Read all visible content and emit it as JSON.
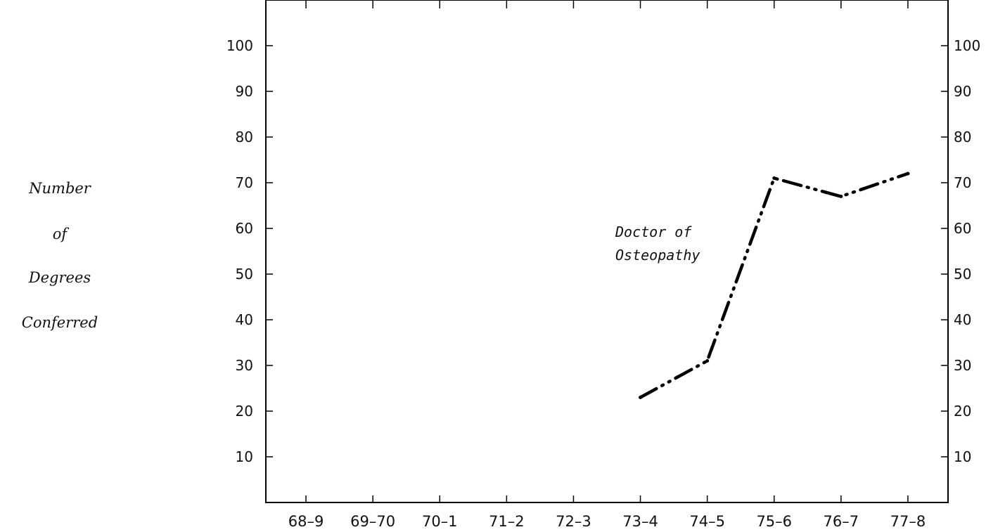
{
  "chart_data": {
    "type": "line",
    "title": "",
    "ylabel_lines": [
      "Number",
      "of",
      "Degrees",
      "Conferred"
    ],
    "xlabel": "",
    "categories": [
      "68-9",
      "69-70",
      "70-1",
      "71-2",
      "72-3",
      "73-4",
      "74-5",
      "75-6",
      "76-7",
      "77-8"
    ],
    "x_tick_labels": [
      "68–9",
      "69–70",
      "70–1",
      "71–2",
      "72–3",
      "73–4",
      "74–5",
      "75–6",
      "76–7",
      "77–8"
    ],
    "y_ticks": [
      10,
      20,
      30,
      40,
      50,
      60,
      70,
      80,
      90,
      100
    ],
    "ylim": [
      0,
      110
    ],
    "grid": false,
    "right_axis_mirrored": true,
    "series": [
      {
        "values": [
          null,
          null,
          null,
          null,
          null,
          23,
          31,
          71,
          67,
          72
        ],
        "line_style": "dash-dot",
        "color": "#000000"
      }
    ],
    "annotations": [
      {
        "text_lines": [
          "Doctor of",
          "Osteopathy"
        ],
        "near_category": "74-5",
        "near_value": 58
      }
    ]
  }
}
